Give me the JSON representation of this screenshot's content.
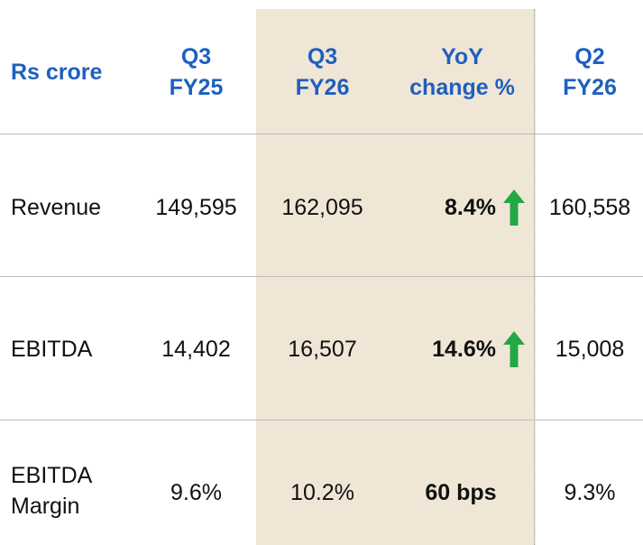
{
  "header": {
    "unit_label": "Rs crore",
    "q3fy25": {
      "line1": "Q3",
      "line2": "FY25"
    },
    "q3fy26": {
      "line1": "Q3",
      "line2": "FY26"
    },
    "yoy": {
      "line1": "YoY",
      "line2": "change %"
    },
    "q2fy26": {
      "line1": "Q2",
      "line2": "FY26"
    }
  },
  "rows": [
    {
      "label": "Revenue",
      "q3fy25": "149,595",
      "q3fy26": "162,095",
      "yoy": "8.4%",
      "yoy_trend": "up-arrow-icon",
      "q2fy26": "160,558"
    },
    {
      "label": "EBITDA",
      "q3fy25": "14,402",
      "q3fy26": "16,507",
      "yoy": "14.6%",
      "yoy_trend": "up-arrow-icon",
      "q2fy26": "15,008"
    },
    {
      "label_line1": "EBITDA",
      "label_line2": "Margin",
      "q3fy25": "9.6%",
      "q3fy26": "10.2%",
      "yoy": "60 bps",
      "q2fy26": "9.3%"
    }
  ],
  "colors": {
    "header_text": "#1F5FBF",
    "highlight_column": "#F0E6D6",
    "up_arrow": "#22A845"
  }
}
